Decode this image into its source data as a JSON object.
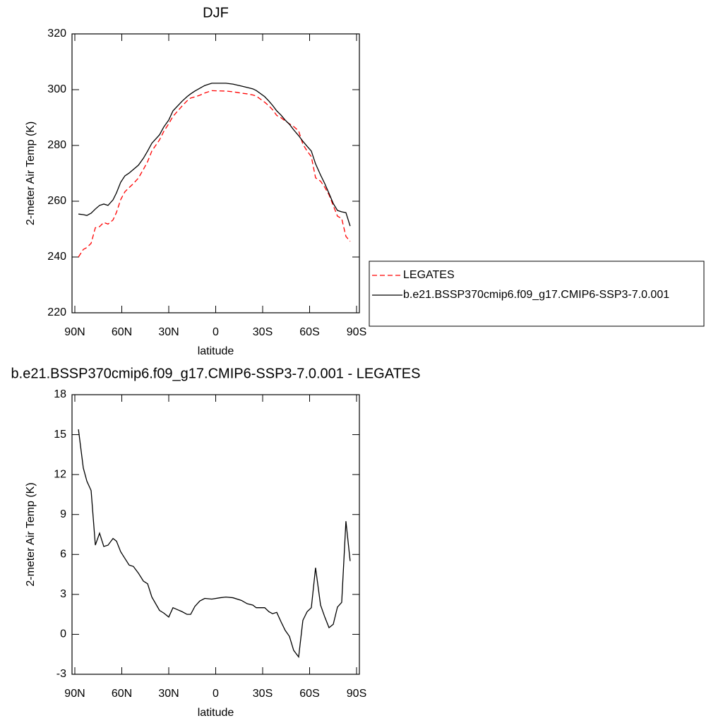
{
  "chart_data": [
    {
      "type": "line",
      "title": "DJF",
      "x_label": "latitude",
      "y_label": "2-meter Air Temp (K)",
      "x": [
        87.7,
        84.6,
        82.3,
        79.6,
        76.9,
        74.2,
        71.5,
        68.8,
        65.6,
        63.4,
        60.7,
        58.0,
        55.3,
        52.6,
        49.4,
        46.2,
        43.5,
        40.8,
        35.9,
        33.2,
        30.0,
        27.3,
        21.4,
        18.3,
        16.0,
        13.3,
        10.2,
        7.0,
        2.5,
        -2.9,
        -6.5,
        -11.0,
        -16.4,
        -20.1,
        -23.7,
        -25.9,
        -31.3,
        -34.0,
        -36.3,
        -39.0,
        -41.7,
        -44.4,
        -47.1,
        -49.8,
        -53.0,
        -55.7,
        -58.4,
        -61.1,
        -63.8,
        -67.0,
        -69.7,
        -72.4,
        -75.1,
        -77.8,
        -80.5,
        -83.2,
        -85.9
      ],
      "series": [
        {
          "name": "LEGATES",
          "color": "#ff0000",
          "dash": "dashed",
          "values": [
            240.0,
            242.7,
            243.4,
            244.9,
            250.5,
            250.9,
            252.4,
            251.8,
            253.3,
            256.0,
            260.6,
            263.4,
            264.9,
            266.3,
            268.3,
            271.4,
            274.2,
            278.0,
            282.0,
            285.0,
            287.8,
            290.4,
            294.2,
            296.0,
            297.0,
            297.4,
            298.0,
            298.8,
            299.65,
            299.55,
            299.5,
            299.25,
            298.75,
            298.5,
            298.1,
            297.7,
            295.5,
            294.2,
            292.85,
            290.75,
            289.95,
            288.8,
            287.75,
            286.8,
            285.2,
            280.45,
            278.0,
            276.0,
            268.4,
            267.2,
            265.0,
            262.3,
            258.45,
            254.65,
            253.8,
            247.4,
            245.6
          ]
        },
        {
          "name": "b.e21.BSSP370cmip6.f09_g17.CMIP6-SSP3-7.0.001",
          "color": "#000000",
          "dash": "solid",
          "values": [
            255.4,
            255.2,
            254.9,
            255.7,
            257.2,
            258.5,
            259.0,
            258.5,
            260.5,
            263.0,
            266.8,
            269.1,
            270.1,
            271.4,
            272.9,
            275.4,
            278.0,
            280.8,
            283.8,
            286.6,
            289.1,
            292.4,
            295.9,
            297.5,
            298.5,
            299.5,
            300.5,
            301.5,
            302.3,
            302.3,
            302.3,
            302.0,
            301.3,
            300.8,
            300.3,
            299.7,
            297.5,
            295.9,
            294.4,
            292.4,
            290.9,
            289.1,
            287.6,
            285.6,
            283.5,
            281.5,
            279.7,
            278.0,
            273.4,
            269.4,
            266.3,
            262.8,
            259.2,
            256.7,
            256.2,
            255.9,
            251.1
          ]
        }
      ],
      "xlim": [
        91.8,
        -91.8
      ],
      "xticks": [
        {
          "value": 90,
          "label": "90N"
        },
        {
          "value": 60,
          "label": "60N"
        },
        {
          "value": 30,
          "label": "30N"
        },
        0,
        {
          "value": -30,
          "label": "30S"
        },
        {
          "value": -60,
          "label": "60S"
        },
        {
          "value": -90,
          "label": "90S"
        }
      ],
      "ylim": [
        220,
        320
      ],
      "yticks": [
        220,
        240,
        260,
        280,
        300,
        320
      ],
      "legend": "right"
    },
    {
      "type": "line",
      "title": "b.e21.BSSP370cmip6.f09_g17.CMIP6-SSP3-7.0.001 - LEGATES",
      "x_label": "latitude",
      "y_label": "2-meter Air Temp (K)",
      "x": [
        87.7,
        84.6,
        82.3,
        79.6,
        76.9,
        74.2,
        71.5,
        68.8,
        65.6,
        63.4,
        60.7,
        58.0,
        55.3,
        52.6,
        49.4,
        46.2,
        43.5,
        40.8,
        35.9,
        33.2,
        30.0,
        27.3,
        21.4,
        18.3,
        16.0,
        13.3,
        10.2,
        7.0,
        2.5,
        -2.9,
        -6.5,
        -11.0,
        -16.4,
        -20.1,
        -23.7,
        -25.9,
        -31.3,
        -34.0,
        -36.3,
        -39.0,
        -41.7,
        -44.4,
        -47.1,
        -49.8,
        -53.0,
        -55.7,
        -58.4,
        -61.1,
        -63.8,
        -67.0,
        -69.7,
        -72.4,
        -75.1,
        -77.8,
        -80.5,
        -83.2,
        -85.9
      ],
      "series": [
        {
          "color": "#000000",
          "dash": "solid",
          "values": [
            15.4,
            12.5,
            11.5,
            10.8,
            6.7,
            7.6,
            6.6,
            6.7,
            7.2,
            7.0,
            6.2,
            5.7,
            5.2,
            5.1,
            4.6,
            4.0,
            3.8,
            2.8,
            1.8,
            1.6,
            1.3,
            2.0,
            1.7,
            1.5,
            1.5,
            2.1,
            2.5,
            2.7,
            2.65,
            2.75,
            2.8,
            2.75,
            2.55,
            2.3,
            2.2,
            2.0,
            2.0,
            1.7,
            1.55,
            1.65,
            0.95,
            0.3,
            -0.15,
            -1.2,
            -1.7,
            1.05,
            1.7,
            2.0,
            5.0,
            2.2,
            1.3,
            0.5,
            0.75,
            2.05,
            2.4,
            8.5,
            5.5
          ]
        }
      ],
      "xlim": [
        91.8,
        -91.8
      ],
      "xticks": [
        {
          "value": 90,
          "label": "90N"
        },
        {
          "value": 60,
          "label": "60N"
        },
        {
          "value": 30,
          "label": "30N"
        },
        0,
        {
          "value": -30,
          "label": "30S"
        },
        {
          "value": -60,
          "label": "60S"
        },
        {
          "value": -90,
          "label": "90S"
        }
      ],
      "ylim": [
        -3,
        18
      ],
      "yticks": [
        -3,
        0,
        3,
        6,
        9,
        12,
        15,
        18
      ]
    }
  ]
}
